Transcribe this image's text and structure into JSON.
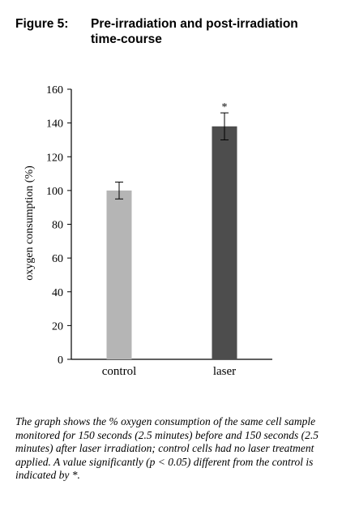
{
  "figure": {
    "number": "Figure 5:",
    "title": "Pre-irradiation and post-irradiation time-course"
  },
  "chart_data": {
    "type": "bar",
    "categories": [
      "control",
      "laser"
    ],
    "values": [
      100,
      138
    ],
    "errors": [
      5,
      8
    ],
    "significance": [
      "",
      "*"
    ],
    "colors": [
      "#b5b5b5",
      "#4d4d4d"
    ],
    "ylabel": "oxygen consumption (%)",
    "xlabel": "",
    "ylim": [
      0,
      160
    ],
    "yticks": [
      0,
      20,
      40,
      60,
      80,
      100,
      120,
      140,
      160
    ],
    "grid": false
  },
  "caption": "The graph shows the % oxygen consumption of the same cell sample monitored for 150 seconds (2.5 minutes) before and 150 seconds (2.5 minutes) after laser irradiation; control cells had no laser treatment applied. A value significantly (p < 0.05) different from the control is indicated by *."
}
